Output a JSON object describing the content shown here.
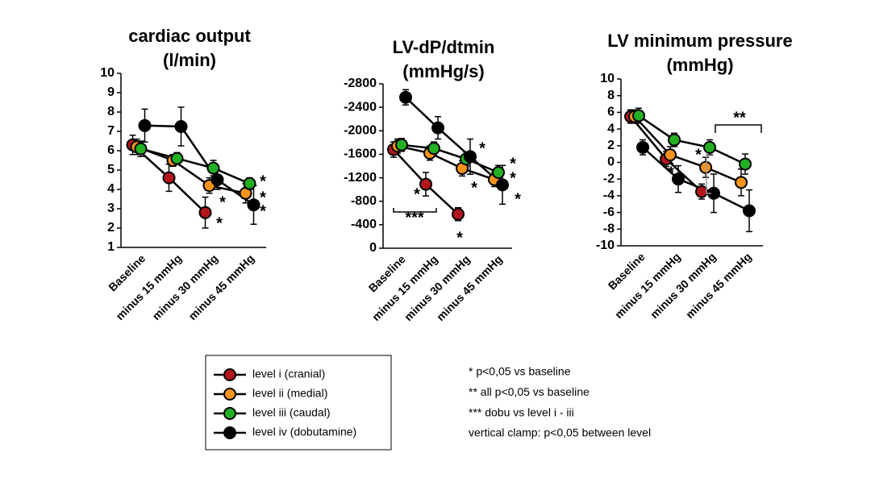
{
  "chart_data": [
    {
      "type": "line",
      "title": "cardiac output",
      "subtitle": "(l/min)",
      "categories": [
        "Baseline",
        "minus 15 mmHg",
        "minus 30 mmHg",
        "minus 45 mmHg"
      ],
      "ylim": [
        1,
        10
      ],
      "yticks": [
        1,
        2,
        3,
        4,
        5,
        6,
        7,
        8,
        9,
        10
      ],
      "series": [
        {
          "name": "level i (cranial)",
          "color": "#b3161b",
          "values": [
            6.3,
            4.6,
            2.8,
            null
          ],
          "errors": [
            0.5,
            0.7,
            0.8,
            null
          ]
        },
        {
          "name": "level ii (medial)",
          "color": "#f7941d",
          "values": [
            6.2,
            5.5,
            4.2,
            3.8
          ],
          "errors": [
            0.4,
            0.3,
            0.4,
            0.5
          ]
        },
        {
          "name": "level iii (caudal)",
          "color": "#22b022",
          "values": [
            6.1,
            5.6,
            5.1,
            4.3
          ],
          "errors": [
            0.4,
            0.3,
            0.4,
            0.3
          ]
        },
        {
          "name": "level iv (dobutamine)",
          "color": "#000000",
          "values": [
            7.3,
            7.25,
            4.5,
            3.2
          ],
          "errors": [
            0.85,
            1.0,
            0.5,
            1.0
          ]
        }
      ],
      "annotations": [
        {
          "text": "*",
          "color": "#1fc01f"
        },
        {
          "text": "*",
          "color": "#f5a030"
        },
        {
          "text": "*",
          "color": "#000000"
        },
        {
          "text": "*",
          "color": "#f5a030"
        },
        {
          "text": "*",
          "color": "#e0201c"
        }
      ]
    },
    {
      "type": "line",
      "title": "LV-dP/dtmin",
      "subtitle": "(mmHg/s)",
      "categories": [
        "Baseline",
        "minus 15 mmHg",
        "minus 30 mmHg",
        "minus 45 mmHg"
      ],
      "ylim": [
        0,
        -2800
      ],
      "yticks": [
        0,
        -400,
        -800,
        -1200,
        -1600,
        -2000,
        -2400,
        -2800
      ],
      "series": [
        {
          "name": "level i (cranial)",
          "color": "#b3161b",
          "values": [
            -1680,
            -1090,
            -580,
            null
          ],
          "errors": [
            130,
            200,
            110,
            null
          ]
        },
        {
          "name": "level ii (medial)",
          "color": "#f7941d",
          "values": [
            -1740,
            -1620,
            -1360,
            -1170
          ],
          "errors": [
            120,
            120,
            130,
            120
          ]
        },
        {
          "name": "level iii (caudal)",
          "color": "#22b022",
          "values": [
            -1760,
            -1700,
            -1520,
            -1290
          ],
          "errors": [
            110,
            110,
            120,
            120
          ]
        },
        {
          "name": "level iv (dobutamine)",
          "color": "#000000",
          "values": [
            -2570,
            -2050,
            -1560,
            -1080
          ],
          "errors": [
            130,
            190,
            300,
            330
          ]
        }
      ],
      "annotations": [
        {
          "text": "*",
          "color": "#000000"
        },
        {
          "text": "*",
          "color": "#e0201c"
        },
        {
          "text": "*",
          "color": "#f5a030"
        },
        {
          "text": "*",
          "color": "#1fc01f"
        },
        {
          "text": "*",
          "color": "#f5a030"
        },
        {
          "text": "*",
          "color": "#000000"
        },
        {
          "text": "*",
          "color": "#e0201c"
        },
        {
          "text": "***",
          "color": "#000000"
        }
      ]
    },
    {
      "type": "line",
      "title": "LV minimum pressure",
      "subtitle": "(mmHg)",
      "categories": [
        "Baseline",
        "minus 15 mmHg",
        "minus 30 mmHg",
        "minus 45 mmHg"
      ],
      "ylim": [
        -10,
        10
      ],
      "yticks": [
        -10,
        -8,
        -6,
        -4,
        -2,
        0,
        2,
        4,
        6,
        8,
        10
      ],
      "series": [
        {
          "name": "level i (cranial)",
          "color": "#b3161b",
          "values": [
            5.5,
            0.4,
            -3.5,
            null
          ],
          "errors": [
            0.8,
            0.9,
            0.9,
            null
          ]
        },
        {
          "name": "level ii (medial)",
          "color": "#f7941d",
          "values": [
            5.5,
            0.9,
            -0.6,
            -2.4
          ],
          "errors": [
            0.8,
            1.0,
            1.2,
            1.6
          ]
        },
        {
          "name": "level iii (caudal)",
          "color": "#22b022",
          "values": [
            5.6,
            2.7,
            1.8,
            -0.2
          ],
          "errors": [
            0.9,
            0.8,
            0.9,
            1.2
          ]
        },
        {
          "name": "level iv (dobutamine)",
          "color": "#000000",
          "values": [
            1.8,
            -2.0,
            -3.7,
            -5.8
          ],
          "errors": [
            0.9,
            1.6,
            2.3,
            2.5
          ]
        }
      ],
      "annotations": [
        {
          "text": "**",
          "color": "#000000"
        },
        {
          "text": "*",
          "color": "#e0201c"
        },
        {
          "text": "*",
          "color": "#f5a030"
        }
      ]
    }
  ],
  "notes": [
    "* p<0,05 vs baseline",
    "** all p<0,05 vs baseline",
    "*** dobu vs level i - iii",
    "vertical clamp: p<0,05 between level"
  ]
}
